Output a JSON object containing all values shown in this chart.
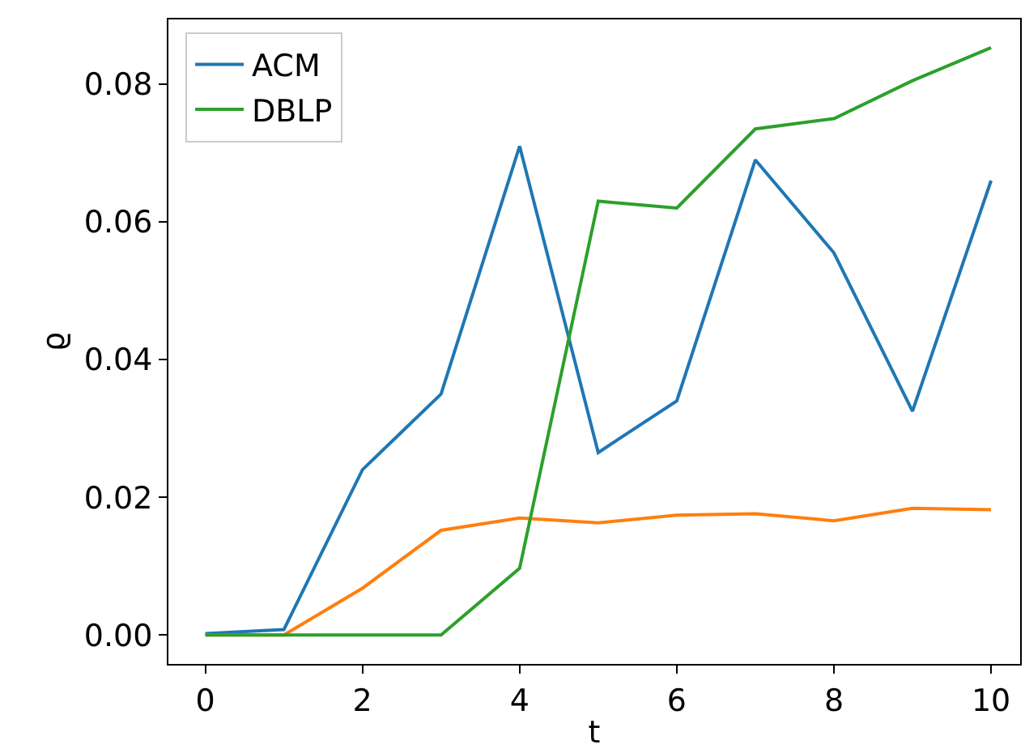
{
  "chart_data": {
    "type": "line",
    "xlabel": "t",
    "ylabel": "ϱ",
    "x": [
      0,
      1,
      2,
      3,
      4,
      5,
      6,
      7,
      8,
      9,
      10
    ],
    "series": [
      {
        "name": "ACM",
        "color": "#1f77b4",
        "values": [
          0.0002,
          0.0008,
          0.024,
          0.035,
          0.071,
          0.0265,
          0.034,
          0.069,
          0.0555,
          0.0325,
          0.066
        ]
      },
      {
        "color": "#ff7f0e",
        "values": [
          0.0,
          0.0,
          0.0068,
          0.0152,
          0.017,
          0.0163,
          0.0174,
          0.0176,
          0.0166,
          0.0184,
          0.0182
        ]
      },
      {
        "name": "DBLP",
        "color": "#2ca02c",
        "values": [
          0.0,
          0.0,
          0.0,
          0.0,
          0.0097,
          0.063,
          0.062,
          0.0735,
          0.075,
          0.0805,
          0.0853
        ]
      }
    ],
    "xlim": [
      -0.47,
      10.37
    ],
    "ylim": [
      -0.0042,
      0.0894
    ],
    "xticks": [
      0,
      2,
      4,
      6,
      8,
      10
    ],
    "yticks": [
      {
        "value": 0,
        "label": "0.00"
      },
      {
        "value": 0.02,
        "label": "0.02"
      },
      {
        "value": 0.04,
        "label": "0.04"
      },
      {
        "value": 0.06,
        "label": "0.06"
      },
      {
        "value": 0.08,
        "label": "0.08"
      }
    ],
    "legend": "top left",
    "marker": "none",
    "line_style": "solid"
  }
}
